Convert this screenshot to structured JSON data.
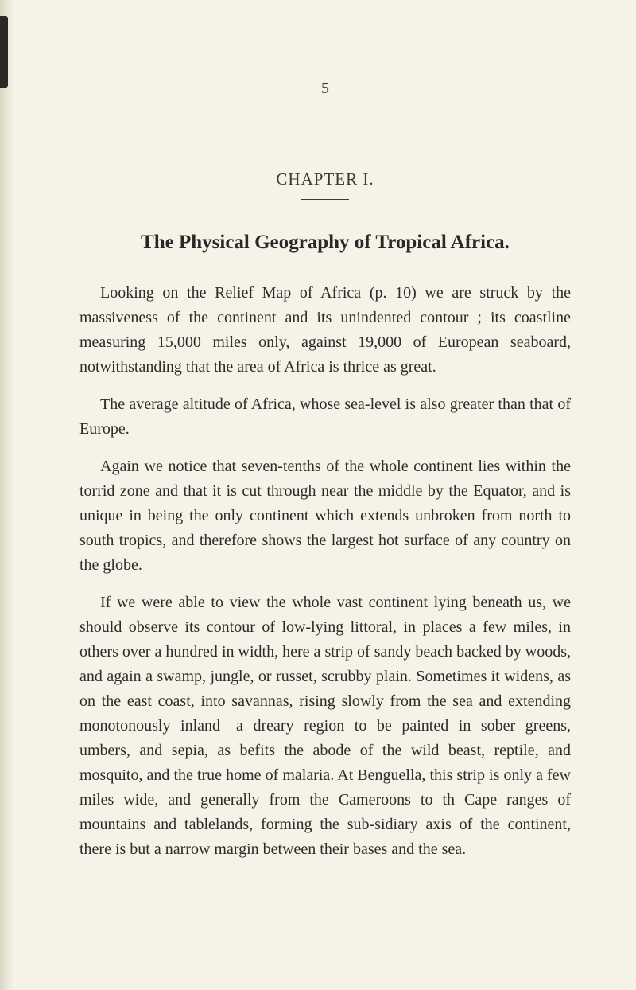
{
  "page_number": "5",
  "chapter_heading": "CHAPTER I.",
  "chapter_title": "The Physical Geography of Tropical Africa.",
  "paragraphs": [
    "Looking on the Relief Map of Africa (p. 10) we are struck by the massiveness of the continent and its unindented contour ; its coastline measuring 15,000 miles only, against 19,000 of European seaboard, notwithstanding that the area of Africa is thrice as great.",
    "The average altitude of Africa, whose sea-level is also greater than that of Europe.",
    "Again we notice that seven-tenths of the whole continent lies within the torrid zone and that it is cut through near the middle by the Equator, and is unique in being the only continent which extends unbroken from north to south tropics, and therefore shows the largest hot surface of any country on the globe.",
    "If we were able to view the whole vast continent lying beneath us, we should observe its contour of low-lying littoral, in places a few miles, in others over a hundred in width, here a strip of sandy beach backed by woods, and again a swamp, jungle, or russet, scrubby plain. Sometimes it widens, as on the east coast, into savannas, rising slowly from the sea and extending monotonously inland—a dreary region to be painted in sober greens, umbers, and sepia, as befits the abode of the wild beast, reptile, and mosquito, and the true home of malaria. At Benguella, this strip is only a few miles wide, and generally from the Cameroons to th Cape ranges of mountains and tablelands, forming the sub-sidiary axis of the continent, there is but a narrow margin between their bases and the sea."
  ],
  "colors": {
    "background": "#f5f2e8",
    "text": "#2e2c28",
    "heading": "#2a2826"
  }
}
